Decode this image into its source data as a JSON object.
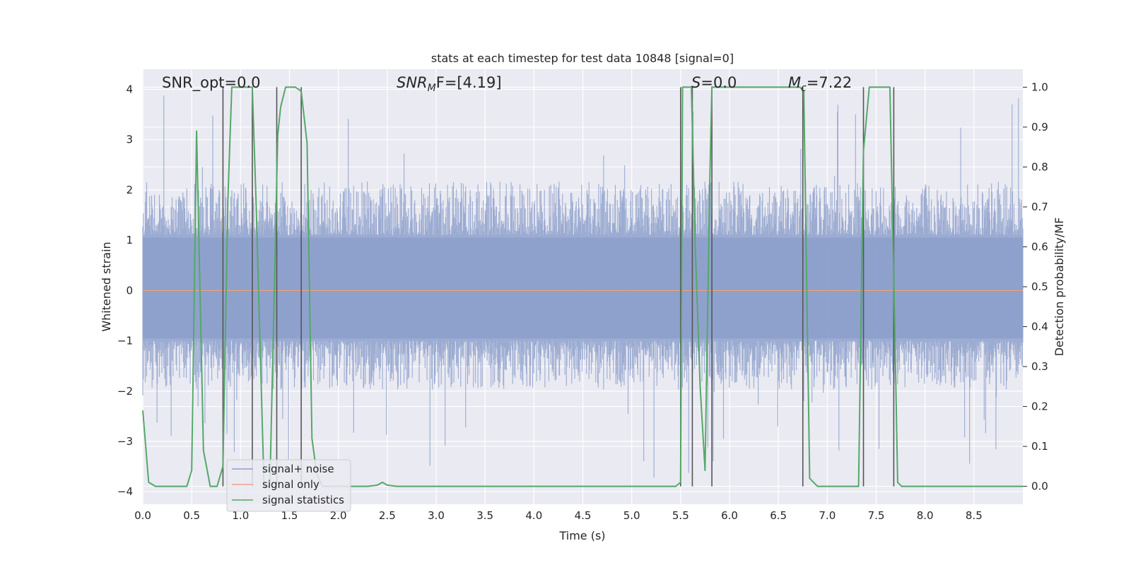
{
  "chart_data": {
    "type": "line",
    "title": "stats at each timestep for test data 10848 [signal=0]",
    "xlabel": "Time (s)",
    "ylabel": "Whitened strain",
    "y2label": "Detection probability/MF",
    "xlim": [
      0.0,
      9.0
    ],
    "ylim": [
      -4.25,
      4.4
    ],
    "y2lim": [
      -0.045,
      1.045
    ],
    "xticks": [
      0.0,
      0.5,
      1.0,
      1.5,
      2.0,
      2.5,
      3.0,
      3.5,
      4.0,
      4.5,
      5.0,
      5.5,
      6.0,
      6.5,
      7.0,
      7.5,
      8.0,
      8.5
    ],
    "xtick_labels": [
      "0.0",
      "0.5",
      "1.0",
      "1.5",
      "2.0",
      "2.5",
      "3.0",
      "3.5",
      "4.0",
      "4.5",
      "5.0",
      "5.5",
      "6.0",
      "6.5",
      "7.0",
      "7.5",
      "8.0",
      "8.5"
    ],
    "yticks": [
      -4,
      -3,
      -2,
      -1,
      0,
      1,
      2,
      3,
      4
    ],
    "ytick_labels": [
      "−4",
      "−3",
      "−2",
      "−1",
      "0",
      "1",
      "2",
      "3",
      "4"
    ],
    "y2ticks": [
      0.0,
      0.1,
      0.2,
      0.3,
      0.4,
      0.5,
      0.6,
      0.7,
      0.8,
      0.9,
      1.0
    ],
    "y2tick_labels": [
      "0.0",
      "0.1",
      "0.2",
      "0.3",
      "0.4",
      "0.5",
      "0.6",
      "0.7",
      "0.8",
      "0.9",
      "1.0"
    ],
    "grid": true,
    "legend_position": "lower-left",
    "annotations": [
      {
        "text": "SNR_opt=0.0"
      },
      {
        "text": "SNR_MF=[4.19]",
        "base": "SNR",
        "sub": "M",
        "tail": "F=[4.19]"
      },
      {
        "text": "S=0.0",
        "base": "S",
        "tail": "=0.0"
      },
      {
        "text": "M_c=7.22",
        "base": "M",
        "sub": "c",
        "tail": "=7.22"
      }
    ],
    "series": [
      {
        "name": "signal+ noise",
        "color": "#8da0cb",
        "kind": "noise",
        "envelope": {
          "typical_max": 2.2,
          "extreme_max": 4.0,
          "typical_min": -2.0,
          "extreme_min": -3.9
        }
      },
      {
        "name": "signal only",
        "color": "#e8a58a",
        "x": [
          0.0,
          9.0
        ],
        "y": [
          0.0,
          0.0
        ]
      },
      {
        "name": "signal statistics",
        "color": "#55a868",
        "axis": "right",
        "x": [
          0.0,
          0.06,
          0.13,
          0.2,
          0.45,
          0.5,
          0.55,
          0.62,
          0.69,
          0.76,
          0.82,
          0.87,
          0.91,
          1.0,
          1.08,
          1.12,
          1.16,
          1.24,
          1.3,
          1.35,
          1.38,
          1.41,
          1.46,
          1.56,
          1.62,
          1.68,
          1.73,
          1.78,
          1.84,
          1.9,
          2.0,
          2.3,
          2.4,
          2.45,
          2.5,
          2.6,
          2.8,
          5.45,
          5.5,
          5.52,
          5.56,
          5.61,
          5.65,
          5.7,
          5.75,
          5.8,
          5.82,
          5.85,
          5.9,
          6.0,
          6.72,
          6.76,
          6.82,
          6.9,
          7.32,
          7.37,
          7.43,
          7.47,
          7.53,
          7.6,
          7.64,
          7.69,
          7.72,
          7.76,
          7.82,
          9.0
        ],
        "y": [
          0.19,
          0.01,
          0.0,
          0.0,
          0.0,
          0.04,
          0.89,
          0.09,
          0.0,
          0.0,
          0.05,
          0.72,
          1.0,
          1.0,
          1.0,
          1.0,
          0.7,
          0.0,
          0.0,
          0.55,
          0.88,
          0.95,
          1.0,
          1.0,
          0.99,
          0.86,
          0.12,
          0.03,
          0.0,
          0.0,
          0.0,
          0.0,
          0.003,
          0.01,
          0.003,
          0.0,
          0.0,
          0.0,
          0.01,
          1.0,
          1.0,
          1.0,
          0.6,
          0.25,
          0.04,
          0.78,
          1.0,
          1.0,
          1.0,
          1.0,
          1.0,
          0.99,
          0.02,
          0.0,
          0.0,
          0.84,
          1.0,
          1.0,
          1.0,
          1.0,
          1.0,
          0.4,
          0.01,
          0.0,
          0.0,
          0.0
        ]
      }
    ],
    "vertical_markers": [
      {
        "x": 0.82,
        "y2_range": [
          0.0,
          1.0
        ]
      },
      {
        "x": 1.12,
        "y2_range": [
          0.0,
          1.0
        ]
      },
      {
        "x": 1.37,
        "y2_range": [
          0.0,
          1.0
        ]
      },
      {
        "x": 1.62,
        "y2_range": [
          0.0,
          1.0
        ]
      },
      {
        "x": 5.5,
        "y2_range": [
          0.0,
          1.0
        ]
      },
      {
        "x": 5.62,
        "y2_range": [
          0.0,
          1.0
        ]
      },
      {
        "x": 5.82,
        "y2_range": [
          0.0,
          1.0
        ]
      },
      {
        "x": 6.75,
        "y2_range": [
          0.0,
          1.0
        ]
      },
      {
        "x": 7.37,
        "y2_range": [
          0.0,
          1.0
        ]
      },
      {
        "x": 7.68,
        "y2_range": [
          0.0,
          1.0
        ]
      }
    ]
  }
}
